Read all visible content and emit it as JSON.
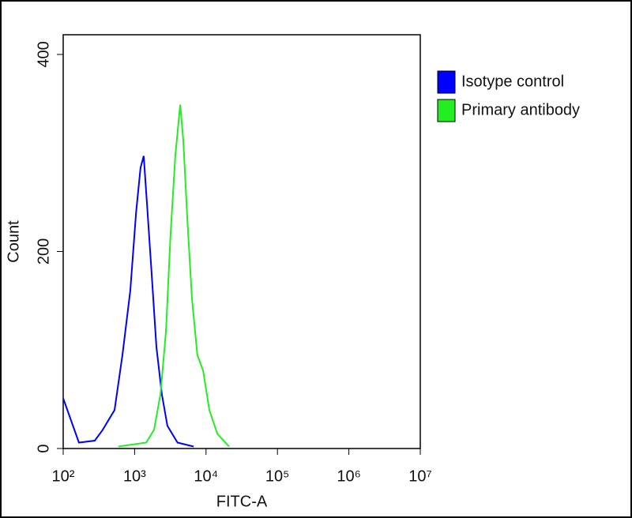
{
  "chart_data": {
    "type": "line",
    "x_label": "FITC-A",
    "y_label": "Count",
    "xscale": "log",
    "xlim": [
      100,
      10000000
    ],
    "xticks": [
      {
        "value": 100,
        "label": "10²"
      },
      {
        "value": 1000,
        "label": "10³"
      },
      {
        "value": 10000,
        "label": "10⁴"
      },
      {
        "value": 100000,
        "label": "10⁵"
      },
      {
        "value": 1000000,
        "label": "10⁶"
      },
      {
        "value": 10000000,
        "label": "10⁷"
      }
    ],
    "ylim": [
      0,
      420
    ],
    "yticks": [
      0,
      200,
      400
    ],
    "legend": "outside-right-top",
    "series": [
      {
        "name": "Isotype control",
        "color": "#0000ff",
        "x": [
          100,
          166,
          277,
          357,
          524,
          675,
          870,
          1050,
          1210,
          1340,
          1490,
          1735,
          2020,
          2410,
          2880,
          3990,
          6700
        ],
        "values": [
          51,
          6,
          8,
          19,
          39,
          95,
          160,
          240,
          285,
          297,
          248,
          177,
          103,
          55,
          23,
          6,
          2
        ]
      },
      {
        "name": "Primary antibody",
        "color": "#22ee22",
        "x": [
          590,
          1450,
          1870,
          2300,
          2750,
          3180,
          3710,
          4350,
          4800,
          5480,
          6360,
          7560,
          9090,
          11140,
          14400,
          21000
        ],
        "values": [
          2,
          6,
          19,
          55,
          119,
          216,
          297,
          349,
          313,
          232,
          152,
          95,
          79,
          39,
          15,
          2
        ]
      }
    ]
  }
}
